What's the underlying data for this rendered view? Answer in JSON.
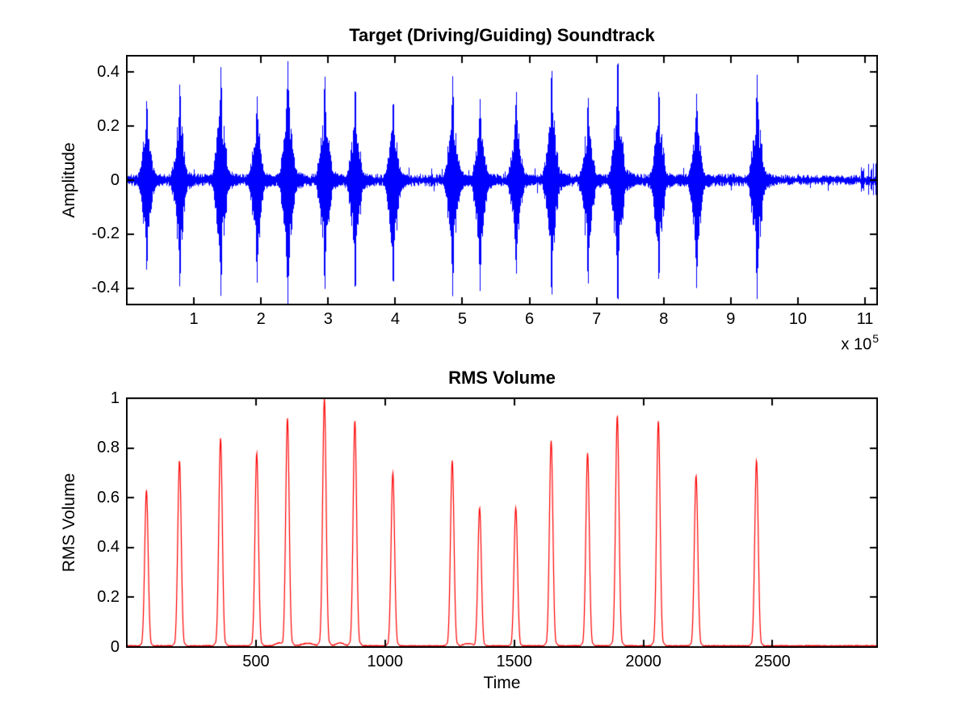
{
  "figure": {
    "background": "#ffffff",
    "axis_color": "#000000",
    "text_color": "#000000"
  },
  "chart_data": [
    {
      "type": "line",
      "id": "soundtrack-waveform",
      "title": "Target (Driving/Guiding) Soundtrack",
      "xlabel": "",
      "ylabel": "Amplitude",
      "line_color": "#0000ff",
      "xlim": [
        0,
        1118000
      ],
      "ylim": [
        -0.46,
        0.46
      ],
      "xtick_values": [
        100000,
        200000,
        300000,
        400000,
        500000,
        600000,
        700000,
        800000,
        900000,
        1000000,
        1100000
      ],
      "xtick_labels": [
        "1",
        "2",
        "3",
        "4",
        "5",
        "6",
        "7",
        "8",
        "9",
        "10",
        "11"
      ],
      "x_multiplier_text": "x 10",
      "x_multiplier_exponent": "5",
      "ytick_values": [
        -0.4,
        -0.2,
        0,
        0.2,
        0.4
      ],
      "ytick_labels": [
        "-0.4",
        "-0.2",
        "0",
        "0.2",
        "0.4"
      ],
      "grid": false,
      "noise_band_amplitude": 0.016,
      "signal_end_sample": 965000,
      "end_crackle_start_sample": 1088000,
      "bursts": [
        {
          "center": 29260,
          "peak_pos": 0.3,
          "peak_neg": -0.34
        },
        {
          "center": 78540,
          "peak_pos": 0.36,
          "peak_neg": -0.4
        },
        {
          "center": 139755,
          "peak_pos": 0.42,
          "peak_neg": -0.43
        },
        {
          "center": 193655,
          "peak_pos": 0.31,
          "peak_neg": -0.38
        },
        {
          "center": 239470,
          "peak_pos": 0.44,
          "peak_neg": -0.47
        },
        {
          "center": 294525,
          "peak_pos": 0.39,
          "peak_neg": -0.41
        },
        {
          "center": 339955,
          "peak_pos": 0.35,
          "peak_neg": -0.42
        },
        {
          "center": 396550,
          "peak_pos": 0.3,
          "peak_neg": -0.4
        },
        {
          "center": 485100,
          "peak_pos": 0.385,
          "peak_neg": -0.43
        },
        {
          "center": 525910,
          "peak_pos": 0.3,
          "peak_neg": -0.41
        },
        {
          "center": 579810,
          "peak_pos": 0.33,
          "peak_neg": -0.35
        },
        {
          "center": 632555,
          "peak_pos": 0.42,
          "peak_neg": -0.44
        },
        {
          "center": 686840,
          "peak_pos": 0.31,
          "peak_neg": -0.39
        },
        {
          "center": 731115,
          "peak_pos": 0.46,
          "peak_neg": -0.47
        },
        {
          "center": 792330,
          "peak_pos": 0.34,
          "peak_neg": -0.38
        },
        {
          "center": 848540,
          "peak_pos": 0.32,
          "peak_neg": -0.4
        },
        {
          "center": 938630,
          "peak_pos": 0.39,
          "peak_neg": -0.44
        }
      ]
    },
    {
      "type": "line",
      "id": "rms-volume",
      "title": "RMS Volume",
      "xlabel": "Time",
      "ylabel": "RMS Volume",
      "line_color": "#ff0000",
      "xlim": [
        0,
        2905
      ],
      "ylim": [
        0,
        1
      ],
      "xtick_values": [
        500,
        1000,
        1500,
        2000,
        2500
      ],
      "xtick_labels": [
        "500",
        "1000",
        "1500",
        "2000",
        "2500"
      ],
      "ytick_values": [
        0,
        0.2,
        0.4,
        0.6,
        0.8,
        1
      ],
      "ytick_labels": [
        "0",
        "0.2",
        "0.4",
        "0.6",
        "0.8",
        "1"
      ],
      "grid": false,
      "baseline": 0.005,
      "spike_sigma": 9.5,
      "spikes": [
        {
          "t": 76,
          "h": 0.63
        },
        {
          "t": 204,
          "h": 0.75
        },
        {
          "t": 363,
          "h": 0.84
        },
        {
          "t": 503,
          "h": 0.78
        },
        {
          "t": 622,
          "h": 0.92
        },
        {
          "t": 765,
          "h": 1.0
        },
        {
          "t": 883,
          "h": 0.91
        },
        {
          "t": 1030,
          "h": 0.7
        },
        {
          "t": 1260,
          "h": 0.75
        },
        {
          "t": 1366,
          "h": 0.56
        },
        {
          "t": 1506,
          "h": 0.56
        },
        {
          "t": 1643,
          "h": 0.83
        },
        {
          "t": 1784,
          "h": 0.78
        },
        {
          "t": 1899,
          "h": 0.93
        },
        {
          "t": 2058,
          "h": 0.91
        },
        {
          "t": 2204,
          "h": 0.69
        },
        {
          "t": 2438,
          "h": 0.75
        }
      ],
      "minor_bumps": [
        {
          "t": 592,
          "h": 0.012,
          "w": 22
        },
        {
          "t": 700,
          "h": 0.01,
          "w": 30
        },
        {
          "t": 826,
          "h": 0.012,
          "w": 20
        },
        {
          "t": 1322,
          "h": 0.009,
          "w": 24
        }
      ]
    }
  ]
}
